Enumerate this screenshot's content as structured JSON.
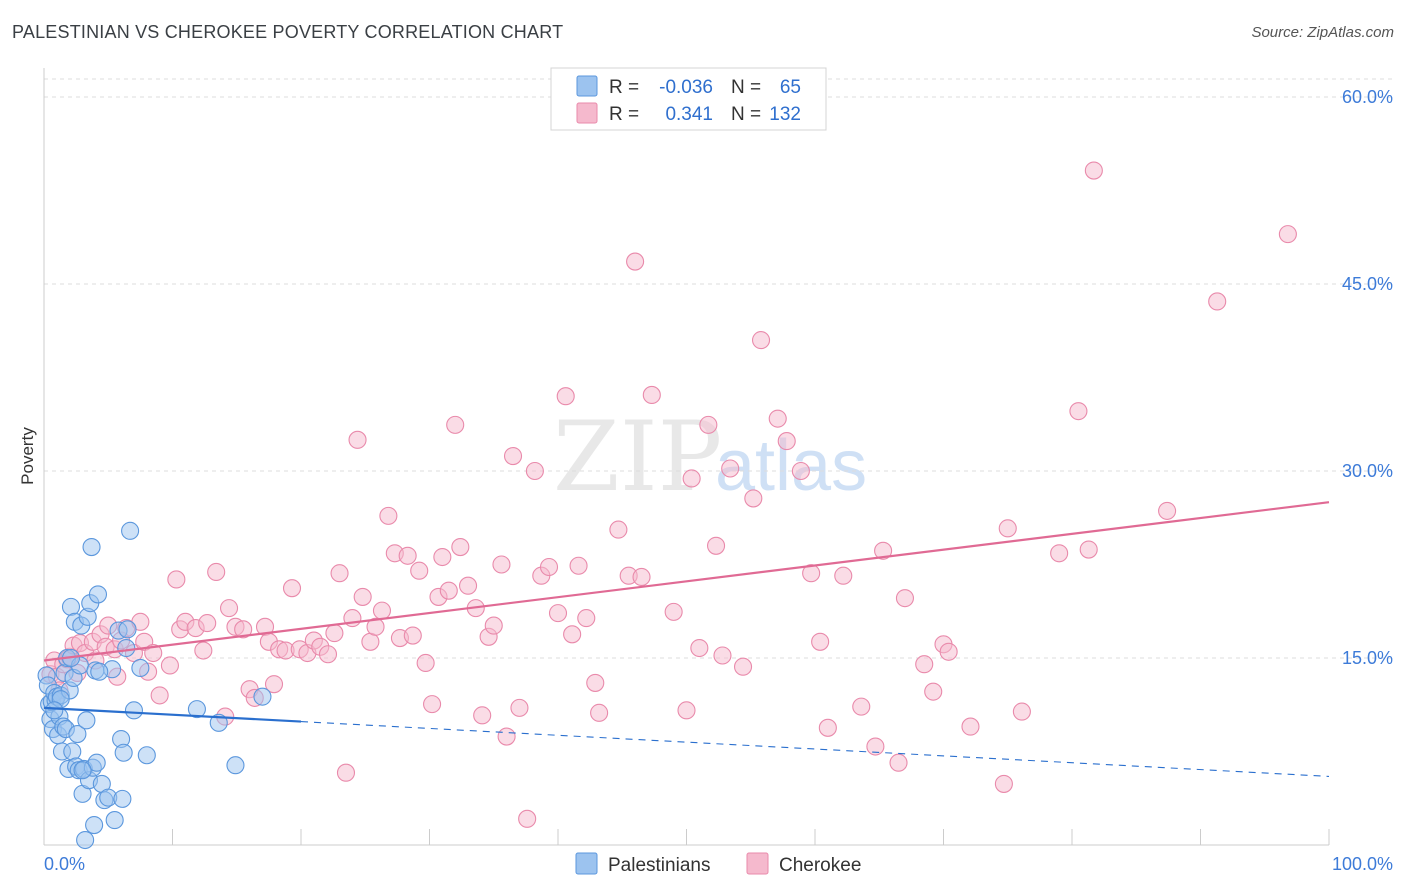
{
  "title": "PALESTINIAN VS CHEROKEE POVERTY CORRELATION CHART",
  "source": "Source: ZipAtlas.com",
  "watermark": {
    "part1": "ZIP",
    "part2": "atlas"
  },
  "colors": {
    "palestinians_fill": "#9cc3ef",
    "palestinians_stroke": "#5b97dd",
    "palestinians_line": "#2a6fce",
    "cherokee_fill": "#f5b9cd",
    "cherokee_stroke": "#e98aab",
    "cherokee_line": "#e06a94",
    "tick_text": "#3d7bd8",
    "grid": "#dddddd"
  },
  "legend": {
    "rows": [
      {
        "r_label": "R =",
        "r_value": "-0.036",
        "n_label": "N =",
        "n_value": "65"
      },
      {
        "r_label": "R =",
        "r_value": "0.341",
        "n_label": "N =",
        "n_value": "132"
      }
    ]
  },
  "chart_data": {
    "type": "scatter",
    "title": "PALESTINIAN VS CHEROKEE POVERTY CORRELATION CHART",
    "xlabel": "",
    "ylabel": "Poverty",
    "xlim": [
      0,
      100
    ],
    "ylim": [
      0,
      60
    ],
    "x_tick_labels": [
      "0.0%",
      "100.0%"
    ],
    "y_tick_labels": [
      "15.0%",
      "30.0%",
      "45.0%",
      "60.0%"
    ],
    "y_ticks": [
      15,
      30,
      45,
      60
    ],
    "grid": "horizontal dashed",
    "legend_position": "bottom",
    "series": [
      {
        "name": "Palestinians",
        "r": -0.036,
        "n": 65,
        "trend": {
          "x0": 0,
          "y0": 11.0,
          "x1": 20,
          "y1": 9.9,
          "x_dash_end": 100,
          "y_dash_end": 5.5
        },
        "points": [
          [
            0.2,
            13.6
          ],
          [
            0.3,
            12.8
          ],
          [
            0.4,
            11.3
          ],
          [
            0.5,
            10.1
          ],
          [
            0.6,
            11.5
          ],
          [
            0.7,
            9.3
          ],
          [
            0.8,
            12.2
          ],
          [
            0.9,
            11.6
          ],
          [
            1.0,
            11.9
          ],
          [
            1.1,
            8.8
          ],
          [
            1.2,
            10.3
          ],
          [
            1.3,
            12.0
          ],
          [
            1.4,
            7.5
          ],
          [
            1.5,
            9.5
          ],
          [
            1.6,
            13.8
          ],
          [
            1.7,
            9.3
          ],
          [
            1.8,
            15.0
          ],
          [
            1.9,
            6.1
          ],
          [
            2.0,
            12.4
          ],
          [
            2.1,
            19.1
          ],
          [
            2.2,
            7.5
          ],
          [
            2.3,
            13.4
          ],
          [
            2.4,
            17.9
          ],
          [
            2.5,
            6.3
          ],
          [
            2.6,
            8.9
          ],
          [
            2.7,
            6.0
          ],
          [
            2.8,
            14.4
          ],
          [
            2.9,
            17.6
          ],
          [
            3.0,
            4.1
          ],
          [
            3.1,
            6.1
          ],
          [
            3.2,
            0.4
          ],
          [
            3.3,
            10.0
          ],
          [
            3.4,
            18.3
          ],
          [
            3.5,
            5.2
          ],
          [
            3.6,
            19.4
          ],
          [
            3.7,
            23.9
          ],
          [
            3.8,
            6.2
          ],
          [
            3.9,
            1.6
          ],
          [
            4.0,
            14.0
          ],
          [
            4.1,
            6.6
          ],
          [
            4.2,
            20.1
          ],
          [
            4.5,
            4.9
          ],
          [
            4.7,
            3.6
          ],
          [
            5.0,
            3.8
          ],
          [
            5.3,
            14.1
          ],
          [
            5.5,
            2.0
          ],
          [
            5.8,
            17.2
          ],
          [
            6.0,
            8.5
          ],
          [
            6.1,
            3.7
          ],
          [
            6.2,
            7.4
          ],
          [
            6.4,
            15.8
          ],
          [
            6.5,
            17.3
          ],
          [
            6.7,
            25.2
          ],
          [
            7.0,
            10.8
          ],
          [
            7.5,
            14.2
          ],
          [
            8.0,
            7.2
          ],
          [
            11.9,
            10.9
          ],
          [
            13.6,
            9.8
          ],
          [
            14.9,
            6.4
          ],
          [
            17.0,
            11.9
          ],
          [
            2.1,
            15.0
          ],
          [
            1.3,
            11.7
          ],
          [
            0.8,
            10.8
          ],
          [
            3.0,
            6.0
          ],
          [
            4.3,
            13.9
          ]
        ]
      },
      {
        "name": "Cherokee",
        "r": 0.341,
        "n": 132,
        "trend": {
          "x0": 0,
          "y0": 14.8,
          "x1": 100,
          "y1": 27.5
        },
        "points": [
          [
            0.5,
            13.7
          ],
          [
            0.8,
            14.8
          ],
          [
            1.0,
            13.5
          ],
          [
            1.2,
            12.4
          ],
          [
            1.5,
            14.5
          ],
          [
            1.8,
            14.9
          ],
          [
            2.0,
            15.1
          ],
          [
            2.3,
            16.0
          ],
          [
            2.6,
            13.8
          ],
          [
            2.8,
            16.2
          ],
          [
            3.2,
            15.4
          ],
          [
            3.8,
            16.3
          ],
          [
            4.0,
            14.8
          ],
          [
            4.4,
            16.9
          ],
          [
            4.8,
            15.9
          ],
          [
            5.0,
            17.6
          ],
          [
            5.5,
            15.7
          ],
          [
            5.7,
            13.5
          ],
          [
            6.0,
            16.4
          ],
          [
            6.4,
            17.4
          ],
          [
            7.0,
            15.4
          ],
          [
            7.5,
            17.9
          ],
          [
            7.8,
            16.3
          ],
          [
            8.1,
            13.9
          ],
          [
            8.5,
            15.4
          ],
          [
            9.0,
            12.0
          ],
          [
            9.8,
            14.4
          ],
          [
            10.3,
            21.3
          ],
          [
            10.6,
            17.3
          ],
          [
            11.0,
            17.9
          ],
          [
            11.8,
            17.4
          ],
          [
            12.4,
            15.6
          ],
          [
            12.7,
            17.8
          ],
          [
            13.4,
            21.9
          ],
          [
            14.1,
            10.3
          ],
          [
            14.4,
            19.0
          ],
          [
            14.9,
            17.5
          ],
          [
            15.5,
            17.3
          ],
          [
            16.0,
            12.5
          ],
          [
            16.4,
            11.8
          ],
          [
            17.2,
            17.5
          ],
          [
            17.5,
            16.3
          ],
          [
            17.9,
            12.9
          ],
          [
            18.3,
            15.7
          ],
          [
            18.8,
            15.6
          ],
          [
            19.3,
            20.6
          ],
          [
            19.9,
            15.7
          ],
          [
            20.5,
            15.4
          ],
          [
            21.0,
            16.4
          ],
          [
            21.5,
            15.9
          ],
          [
            22.1,
            15.3
          ],
          [
            22.6,
            17.0
          ],
          [
            23.0,
            21.8
          ],
          [
            23.5,
            5.8
          ],
          [
            24.0,
            18.2
          ],
          [
            24.4,
            32.5
          ],
          [
            24.8,
            19.9
          ],
          [
            25.4,
            16.3
          ],
          [
            25.8,
            17.5
          ],
          [
            26.3,
            18.8
          ],
          [
            26.8,
            26.4
          ],
          [
            27.3,
            23.4
          ],
          [
            27.7,
            16.6
          ],
          [
            28.3,
            23.2
          ],
          [
            28.7,
            16.8
          ],
          [
            29.2,
            22.0
          ],
          [
            29.7,
            14.6
          ],
          [
            30.2,
            11.3
          ],
          [
            30.7,
            19.9
          ],
          [
            31.0,
            23.1
          ],
          [
            31.5,
            20.4
          ],
          [
            32.0,
            33.7
          ],
          [
            32.4,
            23.9
          ],
          [
            33.0,
            20.8
          ],
          [
            33.6,
            19.0
          ],
          [
            34.1,
            10.4
          ],
          [
            34.6,
            16.7
          ],
          [
            35.0,
            17.6
          ],
          [
            35.6,
            22.5
          ],
          [
            36.0,
            8.7
          ],
          [
            36.5,
            31.2
          ],
          [
            37.0,
            11.0
          ],
          [
            37.6,
            2.1
          ],
          [
            38.2,
            30.0
          ],
          [
            38.7,
            21.6
          ],
          [
            39.3,
            22.3
          ],
          [
            40.0,
            18.6
          ],
          [
            40.6,
            36.0
          ],
          [
            41.1,
            16.9
          ],
          [
            41.6,
            22.4
          ],
          [
            42.2,
            18.2
          ],
          [
            42.9,
            13.0
          ],
          [
            43.2,
            10.6
          ],
          [
            44.7,
            25.3
          ],
          [
            45.5,
            21.6
          ],
          [
            46.0,
            46.8
          ],
          [
            46.5,
            21.5
          ],
          [
            47.3,
            36.1
          ],
          [
            49.0,
            18.7
          ],
          [
            50.0,
            10.8
          ],
          [
            50.4,
            29.4
          ],
          [
            51.0,
            15.8
          ],
          [
            51.7,
            33.7
          ],
          [
            52.3,
            24.0
          ],
          [
            52.8,
            15.2
          ],
          [
            53.4,
            30.2
          ],
          [
            54.4,
            14.3
          ],
          [
            55.2,
            27.8
          ],
          [
            55.8,
            40.5
          ],
          [
            57.1,
            34.2
          ],
          [
            57.8,
            32.4
          ],
          [
            58.9,
            30.0
          ],
          [
            59.7,
            21.8
          ],
          [
            60.4,
            16.3
          ],
          [
            61.0,
            9.4
          ],
          [
            62.2,
            21.6
          ],
          [
            63.6,
            11.1
          ],
          [
            64.7,
            7.9
          ],
          [
            65.3,
            23.6
          ],
          [
            66.5,
            6.6
          ],
          [
            67.0,
            19.8
          ],
          [
            68.5,
            14.5
          ],
          [
            69.2,
            12.3
          ],
          [
            70.0,
            16.1
          ],
          [
            72.1,
            9.5
          ],
          [
            74.7,
            4.9
          ],
          [
            75.0,
            25.4
          ],
          [
            76.1,
            10.7
          ],
          [
            79.0,
            23.4
          ],
          [
            80.5,
            34.8
          ],
          [
            81.3,
            23.7
          ],
          [
            81.7,
            54.1
          ],
          [
            87.4,
            26.8
          ],
          [
            91.3,
            43.6
          ],
          [
            96.8,
            49.0
          ],
          [
            70.4,
            15.5
          ]
        ]
      }
    ]
  }
}
